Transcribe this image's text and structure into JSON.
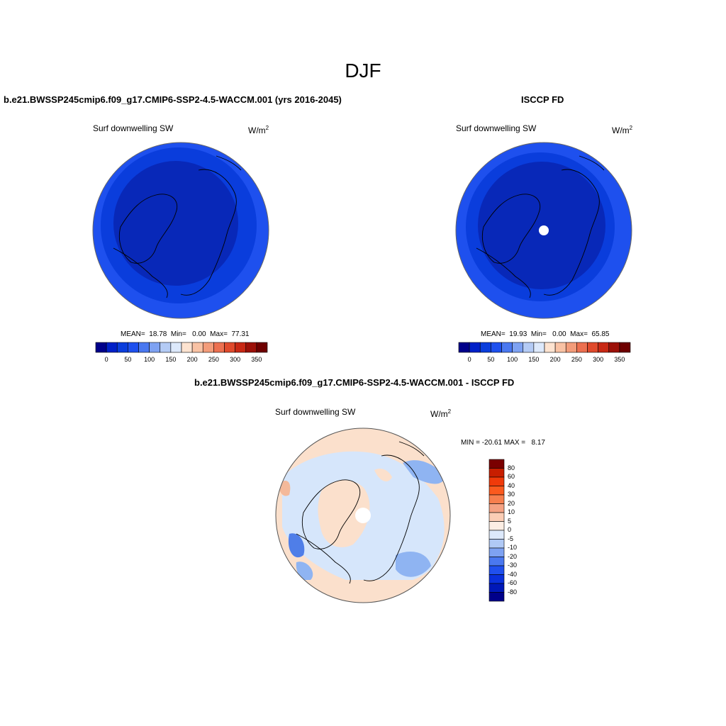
{
  "season": "DJF",
  "colors": {
    "blue_dark": "#0828b8",
    "blue_mid": "#0a3ddc",
    "blue_light": "#1e50ee",
    "diff_light_blue": "#d6e6fb",
    "diff_mid_blue": "#8fb4f2",
    "diff_blue": "#4f7ee8",
    "diff_peach": "#fbe0cc",
    "diff_orange": "#f4b99a"
  },
  "model_panel": {
    "title": "b.e21.BWSSP245cmip6.f09_g17.CMIP6-SSP2-4.5-WACCM.001 (yrs 2016-2045)",
    "variable": "Surf downwelling SW",
    "units": "W/m",
    "units_sup": "2",
    "stats": "MEAN=  18.78  Min=   0.00  Max=  77.31"
  },
  "obs_panel": {
    "title": "ISCCP FD",
    "variable": "Surf downwelling SW",
    "units": "W/m",
    "units_sup": "2",
    "stats": "MEAN=  19.93  Min=   0.00  Max=  65.85"
  },
  "diff_panel": {
    "title": "b.e21.BWSSP245cmip6.f09_g17.CMIP6-SSP2-4.5-WACCM.001 - ISCCP FD",
    "variable": "Surf downwelling SW",
    "units": "W/m",
    "units_sup": "2",
    "minmax": "MIN = -20.61 MAX =   8.17"
  },
  "horizontal_colorbar": {
    "ticks": [
      "0",
      "50",
      "100",
      "150",
      "200",
      "250",
      "300",
      "350"
    ],
    "colors": [
      "#00008a",
      "#0020c8",
      "#0a3ddc",
      "#1e50ee",
      "#4a78f0",
      "#7ea2f2",
      "#b4cbf5",
      "#dde9fb",
      "#fde3d0",
      "#f9c2a4",
      "#f39c7a",
      "#ec7050",
      "#e04a2c",
      "#c82814",
      "#9c1008",
      "#6e0000"
    ]
  },
  "vertical_colorbar": {
    "ticks": [
      "80",
      "60",
      "40",
      "30",
      "20",
      "10",
      "5",
      "0",
      "-5",
      "-10",
      "-20",
      "-30",
      "-40",
      "-60",
      "-80"
    ],
    "colors": [
      "#7a0000",
      "#c81e00",
      "#f03a0a",
      "#fb5a1e",
      "#f77f4e",
      "#f5a283",
      "#fbcdb5",
      "#fdeee4",
      "#dde9fb",
      "#b0c9f5",
      "#7ea2f2",
      "#4a78f0",
      "#2050ee",
      "#0a30dc",
      "#0018b8",
      "#00008a"
    ]
  }
}
